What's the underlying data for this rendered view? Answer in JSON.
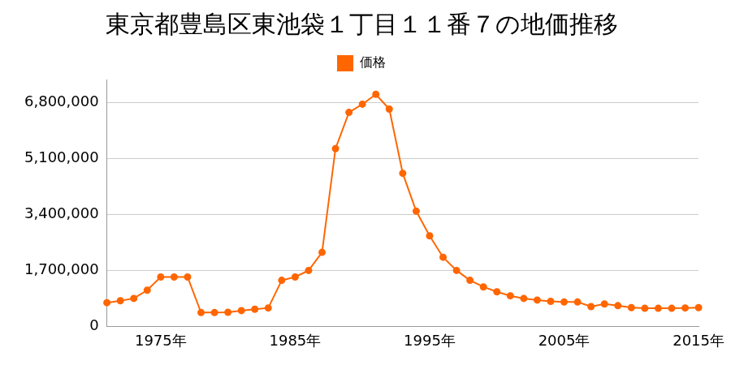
{
  "chart_data": {
    "type": "line",
    "title": "東京都豊島区東池袋１丁目１１番７の地価推移",
    "categories": [
      null,
      null,
      null,
      null,
      "1975年",
      null,
      null,
      null,
      null,
      null,
      null,
      null,
      null,
      null,
      "1985年",
      null,
      null,
      null,
      null,
      null,
      null,
      null,
      null,
      null,
      "1995年",
      null,
      null,
      null,
      null,
      null,
      null,
      null,
      null,
      null,
      "2005年",
      null,
      null,
      null,
      null,
      null,
      null,
      null,
      null,
      null,
      "2015年"
    ],
    "series": [
      {
        "name": "価格",
        "color": "#ff6600",
        "marker": "circle",
        "values": [
          720000,
          780000,
          850000,
          1100000,
          1500000,
          1500000,
          1500000,
          420000,
          420000,
          430000,
          480000,
          520000,
          560000,
          1400000,
          1500000,
          1700000,
          2250000,
          5400000,
          6500000,
          6750000,
          7050000,
          6600000,
          4650000,
          3500000,
          2750000,
          2100000,
          1700000,
          1400000,
          1200000,
          1050000,
          930000,
          850000,
          800000,
          760000,
          740000,
          740000,
          600000,
          680000,
          630000,
          570000,
          550000,
          550000,
          550000,
          560000,
          570000
        ]
      }
    ],
    "ylim": [
      0,
      7500000
    ],
    "yticks": [
      0,
      {
        "value": 1700000,
        "label": "1,700,000"
      },
      {
        "value": 3400000,
        "label": "3,400,000"
      },
      {
        "value": 5100000,
        "label": "5,100,000"
      },
      {
        "value": 6800000,
        "label": "6,800,000"
      }
    ],
    "grid": true,
    "legend": "top"
  }
}
